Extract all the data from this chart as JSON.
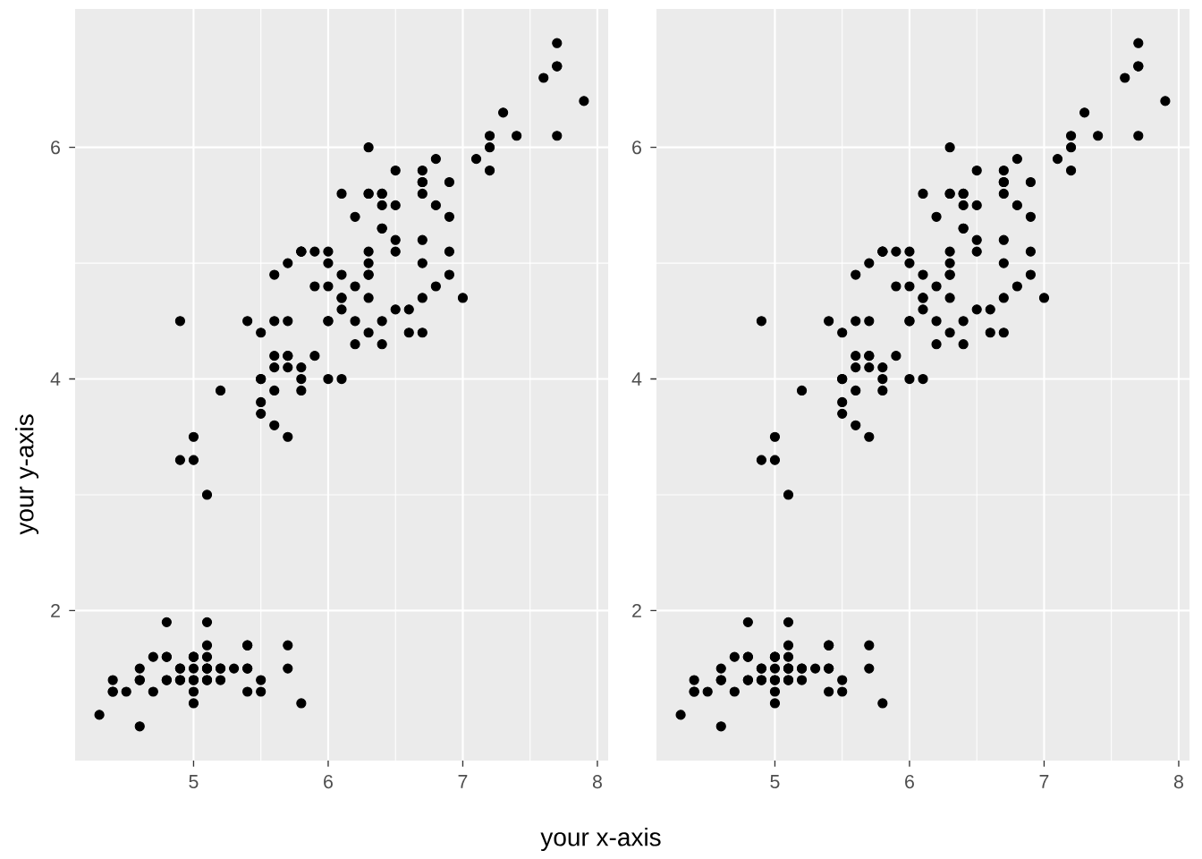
{
  "chart_data": [
    {
      "type": "scatter",
      "xlabel": "your x-axis",
      "ylabel": "your y-axis",
      "color": "#000000",
      "marker": "circle",
      "grid": true,
      "xlim": [
        4.12,
        8.08
      ],
      "ylim": [
        0.705,
        7.195
      ],
      "xticks": [
        5,
        6,
        7,
        8
      ],
      "yticks": [
        2,
        4,
        6
      ],
      "x": [
        5.1,
        4.9,
        4.7,
        4.6,
        5.0,
        5.4,
        4.6,
        5.0,
        4.4,
        4.9,
        5.4,
        4.8,
        4.8,
        4.3,
        5.8,
        5.7,
        5.4,
        5.1,
        5.7,
        5.1,
        5.4,
        5.1,
        4.6,
        5.1,
        4.8,
        5.0,
        5.0,
        5.2,
        5.2,
        4.7,
        4.8,
        5.4,
        5.2,
        5.5,
        4.9,
        5.0,
        5.5,
        4.9,
        4.4,
        5.1,
        5.0,
        4.5,
        4.4,
        5.0,
        5.1,
        4.8,
        5.1,
        4.6,
        5.3,
        5.0,
        7.0,
        6.4,
        6.9,
        5.5,
        6.5,
        5.7,
        6.3,
        4.9,
        6.6,
        5.2,
        5.0,
        5.9,
        6.0,
        6.1,
        5.6,
        6.7,
        5.6,
        5.8,
        6.2,
        5.6,
        5.9,
        6.1,
        6.3,
        6.1,
        6.4,
        6.6,
        6.8,
        6.7,
        6.0,
        5.7,
        5.5,
        5.5,
        5.8,
        6.0,
        5.4,
        6.0,
        6.7,
        6.3,
        5.6,
        5.5,
        5.5,
        6.1,
        5.8,
        5.0,
        5.6,
        5.7,
        5.7,
        6.2,
        5.1,
        5.7,
        6.3,
        5.8,
        7.1,
        6.3,
        6.5,
        7.6,
        4.9,
        7.3,
        6.7,
        7.2,
        6.5,
        6.4,
        6.8,
        5.7,
        5.8,
        6.4,
        6.5,
        7.7,
        7.7,
        6.0,
        6.9,
        5.6,
        7.7,
        6.3,
        6.7,
        7.2,
        6.2,
        6.1,
        6.4,
        7.2,
        7.4,
        7.9,
        6.4,
        6.3,
        6.1,
        7.7,
        6.3,
        6.4,
        6.0,
        6.9,
        6.7,
        6.9,
        5.8,
        6.8,
        6.7,
        6.7,
        6.3,
        6.5,
        6.2,
        5.9
      ],
      "values": [
        1.4,
        1.4,
        1.3,
        1.5,
        1.4,
        1.7,
        1.4,
        1.5,
        1.4,
        1.5,
        1.5,
        1.6,
        1.4,
        1.1,
        1.2,
        1.5,
        1.3,
        1.4,
        1.7,
        1.5,
        1.7,
        1.5,
        1.0,
        1.7,
        1.9,
        1.6,
        1.6,
        1.5,
        1.4,
        1.6,
        1.6,
        1.5,
        1.5,
        1.4,
        1.5,
        1.2,
        1.3,
        1.4,
        1.3,
        1.5,
        1.3,
        1.3,
        1.3,
        1.6,
        1.9,
        1.4,
        1.6,
        1.4,
        1.5,
        1.4,
        4.7,
        4.5,
        4.9,
        4.0,
        4.6,
        4.5,
        4.7,
        3.3,
        4.6,
        3.9,
        3.5,
        4.2,
        4.0,
        4.7,
        3.6,
        4.4,
        4.5,
        4.1,
        4.5,
        3.9,
        4.8,
        4.0,
        4.9,
        4.7,
        4.3,
        4.4,
        4.8,
        5.0,
        4.5,
        3.5,
        3.8,
        3.7,
        3.9,
        5.1,
        4.5,
        4.5,
        4.7,
        4.4,
        4.1,
        4.0,
        4.4,
        4.6,
        4.0,
        3.3,
        4.2,
        4.2,
        4.2,
        4.3,
        3.0,
        4.1,
        6.0,
        5.1,
        5.9,
        5.6,
        5.8,
        6.6,
        4.5,
        6.3,
        5.8,
        6.1,
        5.1,
        5.3,
        5.5,
        5.0,
        5.1,
        5.3,
        5.5,
        6.7,
        6.9,
        5.0,
        5.7,
        4.9,
        6.7,
        4.9,
        5.7,
        6.0,
        4.8,
        4.9,
        5.6,
        5.8,
        6.1,
        6.4,
        5.6,
        5.1,
        5.6,
        6.1,
        5.6,
        5.5,
        4.8,
        5.4,
        5.6,
        5.1,
        5.1,
        5.9,
        5.7,
        5.2,
        5.0,
        5.2,
        5.4,
        5.1
      ]
    },
    {
      "type": "scatter",
      "color": "#000000",
      "marker": "circle",
      "grid": true,
      "xlim": [
        4.12,
        8.08
      ],
      "ylim": [
        0.705,
        7.195
      ],
      "xticks": [
        5,
        6,
        7,
        8
      ],
      "yticks": [
        2,
        4,
        6
      ],
      "x": [
        5.1,
        4.9,
        4.7,
        4.6,
        5.0,
        5.4,
        4.6,
        5.0,
        4.4,
        4.9,
        5.4,
        4.8,
        4.8,
        4.3,
        5.8,
        5.7,
        5.4,
        5.1,
        5.7,
        5.1,
        5.4,
        5.1,
        4.6,
        5.1,
        4.8,
        5.0,
        5.0,
        5.2,
        5.2,
        4.7,
        4.8,
        5.4,
        5.2,
        5.5,
        4.9,
        5.0,
        5.5,
        4.9,
        4.4,
        5.1,
        5.0,
        4.5,
        4.4,
        5.0,
        5.1,
        4.8,
        5.1,
        4.6,
        5.3,
        5.0,
        7.0,
        6.4,
        6.9,
        5.5,
        6.5,
        5.7,
        6.3,
        4.9,
        6.6,
        5.2,
        5.0,
        5.9,
        6.0,
        6.1,
        5.6,
        6.7,
        5.6,
        5.8,
        6.2,
        5.6,
        5.9,
        6.1,
        6.3,
        6.1,
        6.4,
        6.6,
        6.8,
        6.7,
        6.0,
        5.7,
        5.5,
        5.5,
        5.8,
        6.0,
        5.4,
        6.0,
        6.7,
        6.3,
        5.6,
        5.5,
        5.5,
        6.1,
        5.8,
        5.0,
        5.6,
        5.7,
        5.7,
        6.2,
        5.1,
        5.7,
        6.3,
        5.8,
        7.1,
        6.3,
        6.5,
        7.6,
        4.9,
        7.3,
        6.7,
        7.2,
        6.5,
        6.4,
        6.8,
        5.7,
        5.8,
        6.4,
        6.5,
        7.7,
        7.7,
        6.0,
        6.9,
        5.6,
        7.7,
        6.3,
        6.7,
        7.2,
        6.2,
        6.1,
        6.4,
        7.2,
        7.4,
        7.9,
        6.4,
        6.3,
        6.1,
        7.7,
        6.3,
        6.4,
        6.0,
        6.9,
        6.7,
        6.9,
        5.8,
        6.8,
        6.7,
        6.7,
        6.3,
        6.5,
        6.2,
        5.9
      ],
      "values": [
        1.4,
        1.4,
        1.3,
        1.5,
        1.4,
        1.7,
        1.4,
        1.5,
        1.4,
        1.5,
        1.5,
        1.6,
        1.4,
        1.1,
        1.2,
        1.5,
        1.3,
        1.4,
        1.7,
        1.5,
        1.7,
        1.5,
        1.0,
        1.7,
        1.9,
        1.6,
        1.6,
        1.5,
        1.4,
        1.6,
        1.6,
        1.5,
        1.5,
        1.4,
        1.5,
        1.2,
        1.3,
        1.4,
        1.3,
        1.5,
        1.3,
        1.3,
        1.3,
        1.6,
        1.9,
        1.4,
        1.6,
        1.4,
        1.5,
        1.4,
        4.7,
        4.5,
        4.9,
        4.0,
        4.6,
        4.5,
        4.7,
        3.3,
        4.6,
        3.9,
        3.5,
        4.2,
        4.0,
        4.7,
        3.6,
        4.4,
        4.5,
        4.1,
        4.5,
        3.9,
        4.8,
        4.0,
        4.9,
        4.7,
        4.3,
        4.4,
        4.8,
        5.0,
        4.5,
        3.5,
        3.8,
        3.7,
        3.9,
        5.1,
        4.5,
        4.5,
        4.7,
        4.4,
        4.1,
        4.0,
        4.4,
        4.6,
        4.0,
        3.3,
        4.2,
        4.2,
        4.2,
        4.3,
        3.0,
        4.1,
        6.0,
        5.1,
        5.9,
        5.6,
        5.8,
        6.6,
        4.5,
        6.3,
        5.8,
        6.1,
        5.1,
        5.3,
        5.5,
        5.0,
        5.1,
        5.3,
        5.5,
        6.7,
        6.9,
        5.0,
        5.7,
        4.9,
        6.7,
        4.9,
        5.7,
        6.0,
        4.8,
        4.9,
        5.6,
        5.8,
        6.1,
        6.4,
        5.6,
        5.1,
        5.6,
        6.1,
        5.6,
        5.5,
        4.8,
        5.4,
        5.6,
        5.1,
        5.1,
        5.9,
        5.7,
        5.2,
        5.0,
        5.2,
        5.4,
        5.1
      ]
    }
  ]
}
